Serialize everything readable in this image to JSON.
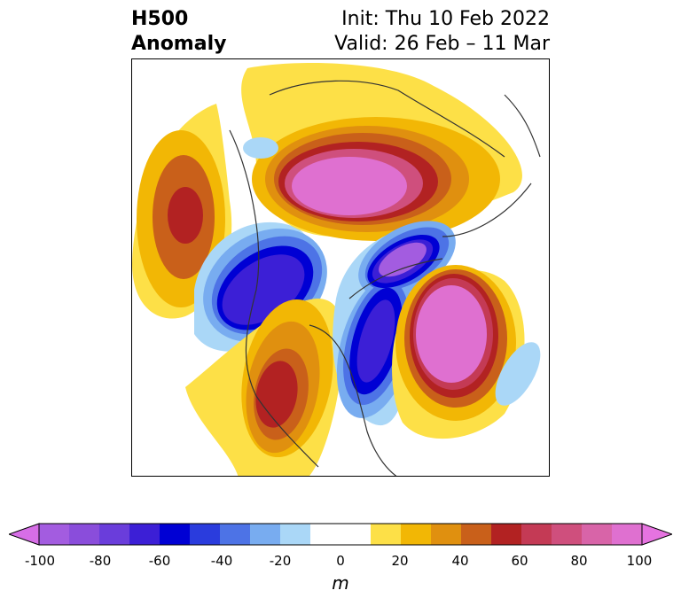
{
  "title": {
    "left_line1": "H500",
    "left_line2": "Anomaly",
    "right_line1": "Init: Thu 10 Feb 2022",
    "right_line2": "Valid: 26 Feb – 11 Mar"
  },
  "colorbar": {
    "unit": "m",
    "ticks": [
      "-100",
      "-80",
      "-60",
      "-40",
      "-20",
      "0",
      "20",
      "40",
      "60",
      "80",
      "100"
    ],
    "levels": [
      {
        "range": "<-100",
        "color": "#d66ee6"
      },
      {
        "range": "-100 to -90",
        "color": "#a35ce0"
      },
      {
        "range": "-90 to -80",
        "color": "#8a4ddb"
      },
      {
        "range": "-80 to -70",
        "color": "#6a3ddb"
      },
      {
        "range": "-70 to -60",
        "color": "#3c1fd6"
      },
      {
        "range": "-60 to -50",
        "color": "#0000d4"
      },
      {
        "range": "-50 to -40",
        "color": "#2a3cdd"
      },
      {
        "range": "-40 to -30",
        "color": "#4d73e6"
      },
      {
        "range": "-30 to -20",
        "color": "#78acf0"
      },
      {
        "range": "-20 to -10",
        "color": "#aad7f7"
      },
      {
        "range": "-10 to 10",
        "color": "#ffffff"
      },
      {
        "range": "10 to 20",
        "color": "#fde047"
      },
      {
        "range": "20 to 30",
        "color": "#f2b705"
      },
      {
        "range": "30 to 40",
        "color": "#e0900f"
      },
      {
        "range": "40 to 50",
        "color": "#c9601a"
      },
      {
        "range": "50 to 60",
        "color": "#b22222"
      },
      {
        "range": "60 to 70",
        "color": "#c43a55"
      },
      {
        "range": "70 to 80",
        "color": "#cf4f7d"
      },
      {
        "range": "80 to 90",
        "color": "#d864a8"
      },
      {
        "range": "90 to 100",
        "color": "#df70d0"
      },
      {
        "range": ">100",
        "color": "#e673e0"
      }
    ]
  }
}
